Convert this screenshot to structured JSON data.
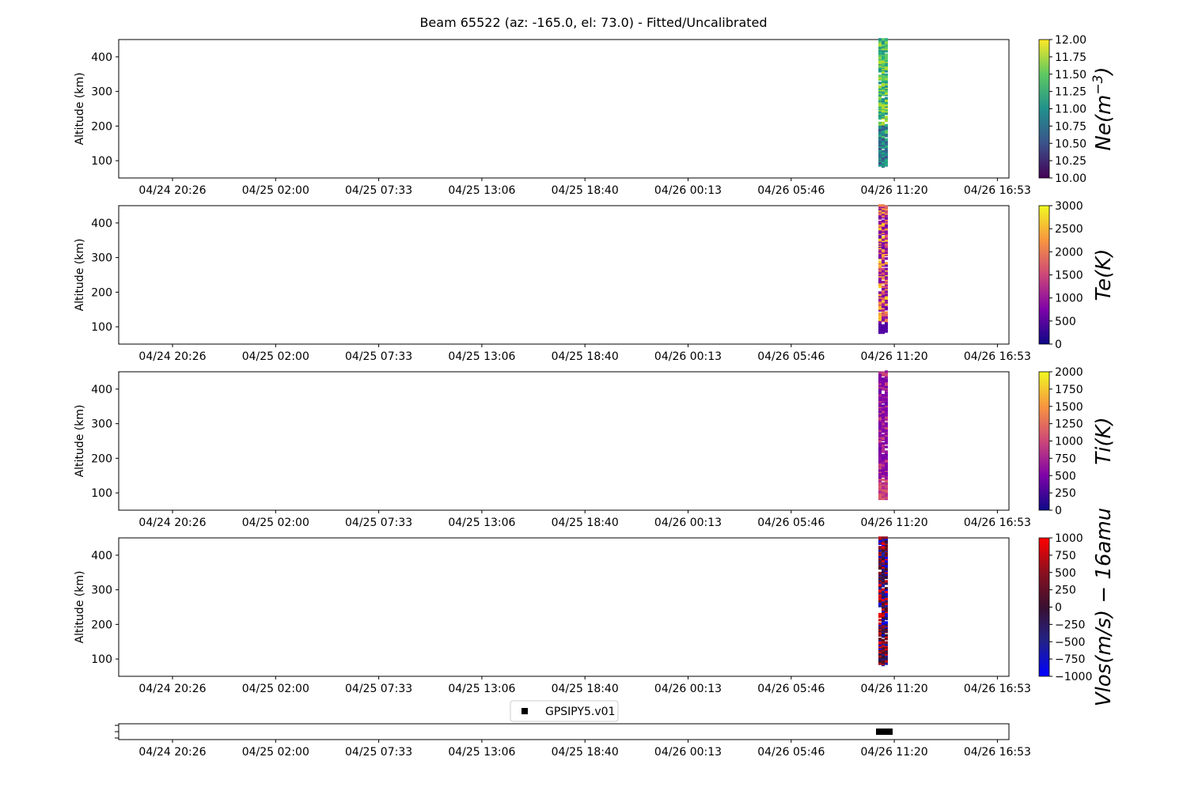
{
  "title": "Beam 65522 (az: -165.0, el: 73.0) - Fitted/Uncalibrated",
  "xticks": [
    "04/24 20:26",
    "04/25 02:00",
    "04/25 07:33",
    "04/25 13:06",
    "04/25 18:40",
    "04/26 00:13",
    "04/26 05:46",
    "04/26 11:20",
    "04/26 16:53"
  ],
  "chart_data": [
    {
      "type": "heatmap",
      "ylabel": "Altitude (km)",
      "yticks": [
        100,
        200,
        300,
        400
      ],
      "ylim": [
        50,
        450
      ],
      "colorbar": {
        "label_base": "Ne(m",
        "label_sup": "−3",
        "label_tail": ")",
        "colormap": "viridis",
        "ticks": [
          "12.00",
          "11.75",
          "11.50",
          "11.25",
          "11.00",
          "10.75",
          "10.50",
          "10.25",
          "10.00"
        ],
        "range": [
          10.0,
          12.0
        ]
      },
      "data_time": "04/26 ~10:10",
      "data_altitude_range": [
        80,
        450
      ]
    },
    {
      "type": "heatmap",
      "ylabel": "Altitude (km)",
      "yticks": [
        100,
        200,
        300,
        400
      ],
      "ylim": [
        50,
        450
      ],
      "colorbar": {
        "label_base": "Te(K)",
        "colormap": "plasma",
        "ticks": [
          "3000",
          "2500",
          "2000",
          "1500",
          "1000",
          "500",
          "0"
        ],
        "range": [
          0,
          3000
        ]
      },
      "data_time": "04/26 ~10:10",
      "data_altitude_range": [
        80,
        450
      ]
    },
    {
      "type": "heatmap",
      "ylabel": "Altitude (km)",
      "yticks": [
        100,
        200,
        300,
        400
      ],
      "ylim": [
        50,
        450
      ],
      "colorbar": {
        "label_base": "Ti(K)",
        "colormap": "plasma",
        "ticks": [
          "2000",
          "1750",
          "1500",
          "1250",
          "1000",
          "750",
          "500",
          "250",
          "0"
        ],
        "range": [
          0,
          2000
        ]
      },
      "data_time": "04/26 ~10:10",
      "data_altitude_range": [
        80,
        450
      ]
    },
    {
      "type": "heatmap",
      "ylabel": "Altitude (km)",
      "yticks": [
        100,
        200,
        300,
        400
      ],
      "ylim": [
        50,
        450
      ],
      "colorbar": {
        "label_base": "Vlos(m/s) − 16amu",
        "colormap": "bwr-dark",
        "ticks": [
          "1000",
          "750",
          "500",
          "250",
          "0",
          "−250",
          "−500",
          "−750",
          "−1000"
        ],
        "range": [
          -1000,
          1000
        ]
      },
      "data_time": "04/26 ~10:10",
      "data_altitude_range": [
        80,
        450
      ]
    },
    {
      "type": "scatter",
      "legend": "GPSIPY5.v01",
      "legend_position": "top-center",
      "marker": "square",
      "points_time": "04/26 ~10:10"
    }
  ]
}
